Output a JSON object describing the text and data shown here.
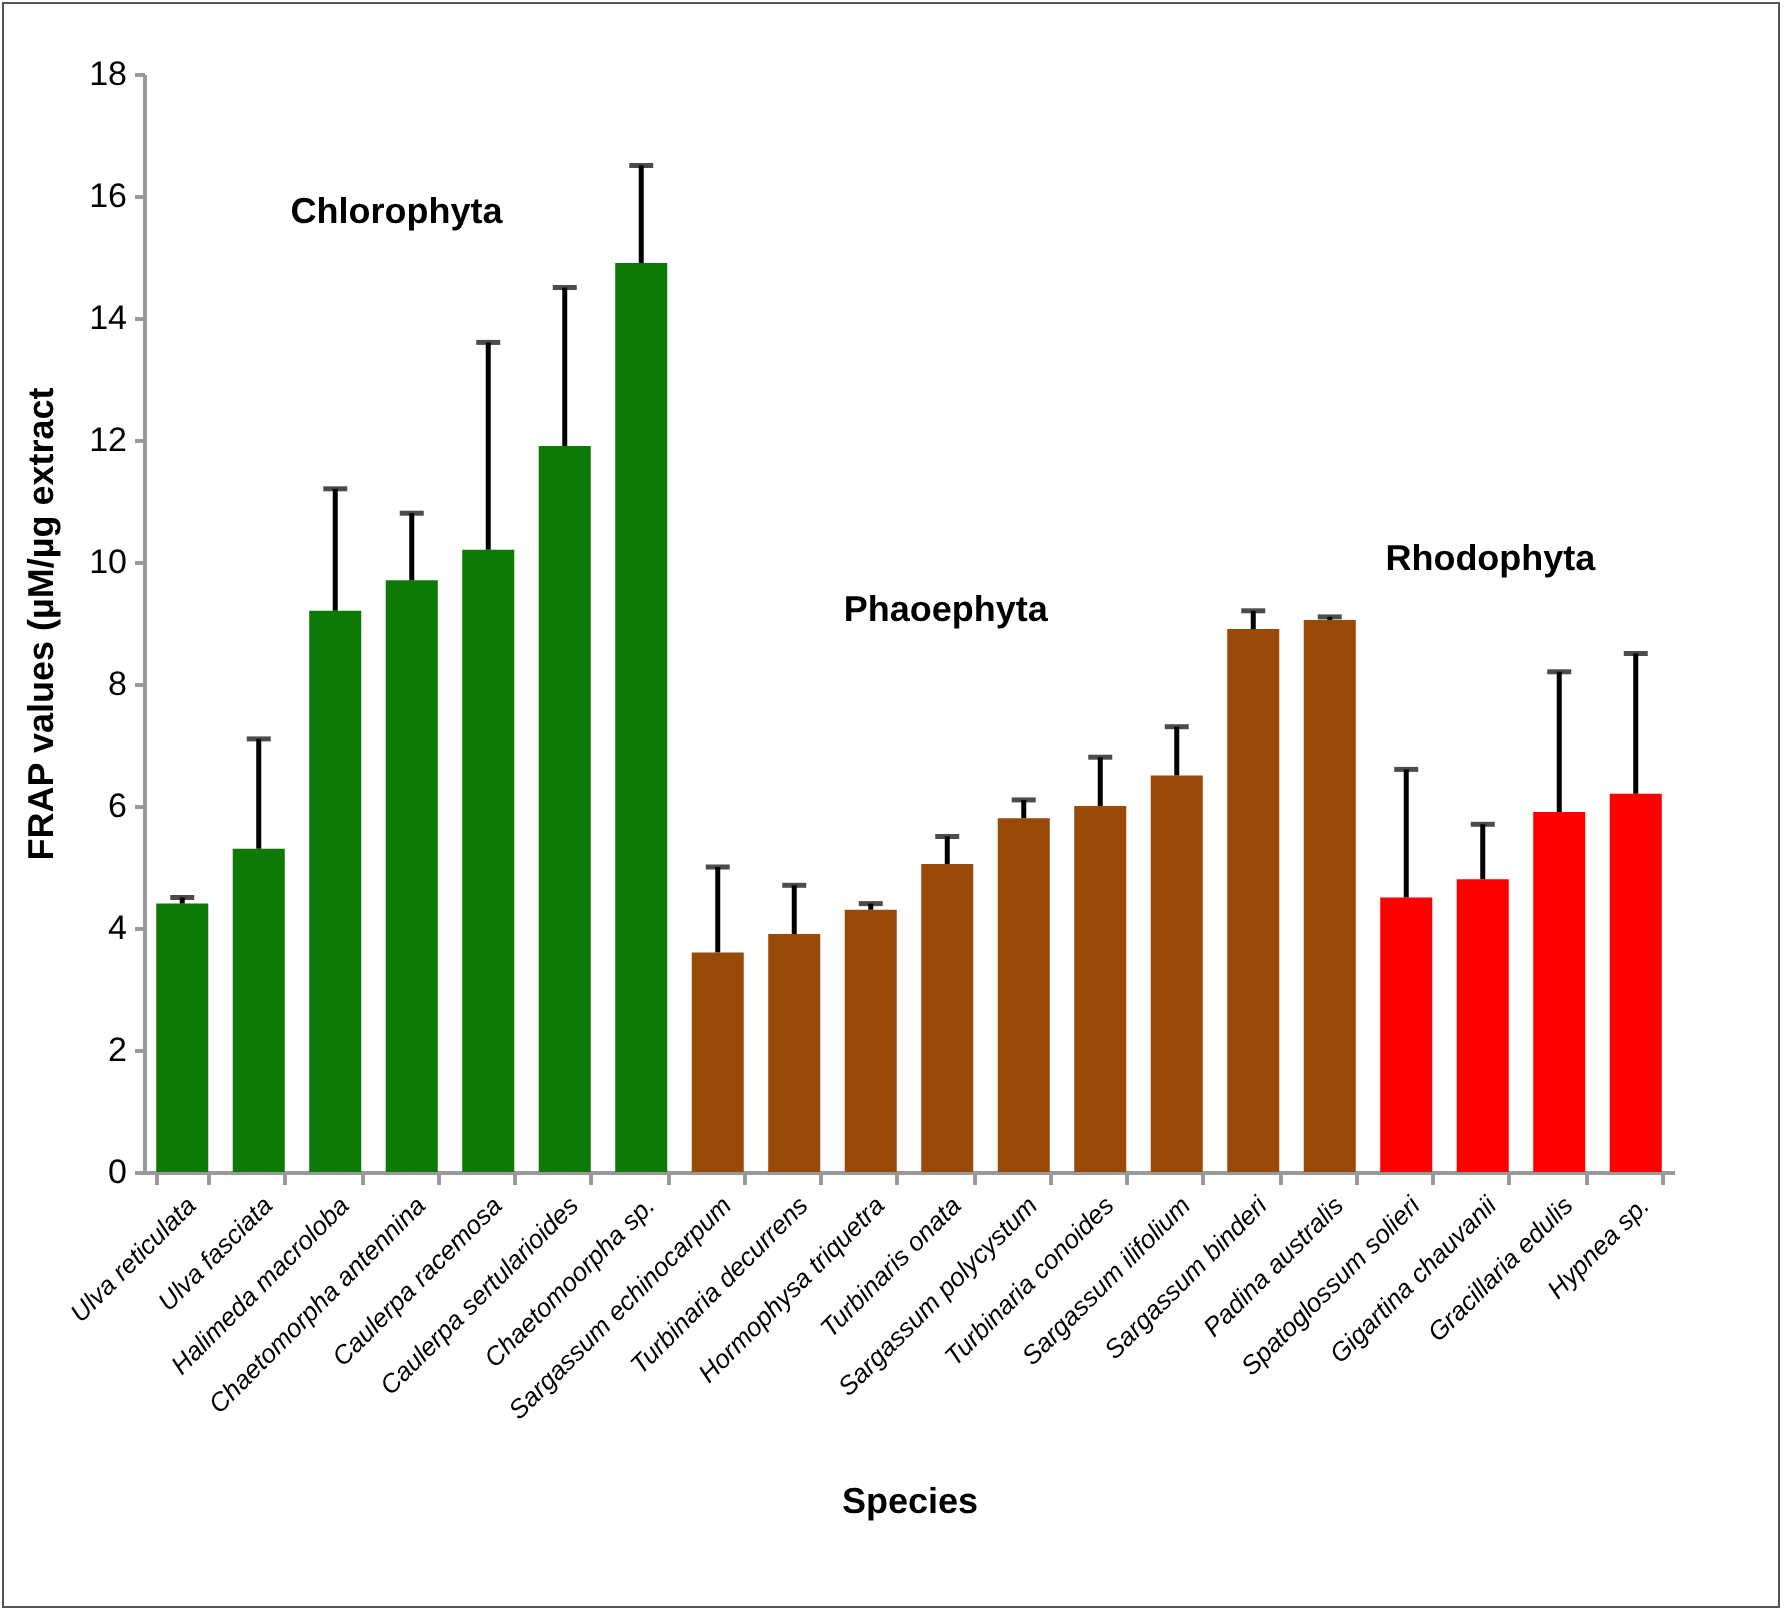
{
  "chart_data": {
    "type": "bar",
    "xlabel": "Species",
    "ylabel": "FRAP values (µM/µg extract",
    "categories": [
      "Ulva reticulata",
      "Ulva fasciata",
      "Halimeda macroloba",
      "Chaetomorpha antennina",
      "Caulerpa racemosa",
      "Caulerpa sertularioides",
      "Chaetomoorpha sp.",
      "Sargassum echinocarpum",
      "Turbinaria decurrens",
      "Hormophysa triquetra",
      "Turbinaris onata",
      "Sargassum polycystum",
      "Turbinaria conoides",
      "Sargassum ilifolium",
      "Sargassum binderi",
      "Padina australis",
      "Spatoglossum solieri",
      "Gigartina chauvanii",
      "Gracillaria edulis",
      "Hypnea sp."
    ],
    "values": [
      4.4,
      5.3,
      9.2,
      9.7,
      10.2,
      11.9,
      14.9,
      3.6,
      3.9,
      4.3,
      5.05,
      5.8,
      6.0,
      6.5,
      8.9,
      9.05,
      4.5,
      4.8,
      5.9,
      6.2
    ],
    "errors": [
      [
        4.4,
        4.5
      ],
      [
        5.3,
        7.1
      ],
      [
        9.2,
        11.2
      ],
      [
        9.7,
        10.8
      ],
      [
        10.2,
        13.6
      ],
      [
        11.9,
        14.5
      ],
      [
        14.9,
        16.5
      ],
      [
        3.6,
        5.0
      ],
      [
        3.9,
        4.7
      ],
      [
        4.3,
        4.4
      ],
      [
        5.05,
        5.5
      ],
      [
        5.8,
        6.1
      ],
      [
        6.0,
        6.8
      ],
      [
        6.5,
        7.3
      ],
      [
        8.9,
        9.2
      ],
      [
        9.05,
        9.1
      ],
      [
        4.5,
        6.6
      ],
      [
        4.8,
        5.7
      ],
      [
        5.9,
        8.2
      ],
      [
        6.2,
        8.5
      ]
    ],
    "colors": [
      "#0d7a06",
      "#0d7a06",
      "#0d7a06",
      "#0d7a06",
      "#0d7a06",
      "#0d7a06",
      "#0d7a06",
      "#994a08",
      "#994a08",
      "#994a08",
      "#994a08",
      "#994a08",
      "#994a08",
      "#994a08",
      "#994a08",
      "#994a08",
      "#ff0000",
      "#ff0000",
      "#ff0000",
      "#ff0000"
    ],
    "ylim": [
      0,
      18
    ],
    "yticks": [
      0,
      2,
      4,
      6,
      8,
      10,
      12,
      14,
      16,
      18
    ],
    "grid": false,
    "annotations": [
      "Chlorophyta",
      "Phaoephyta",
      "Rhodophyta"
    ]
  }
}
